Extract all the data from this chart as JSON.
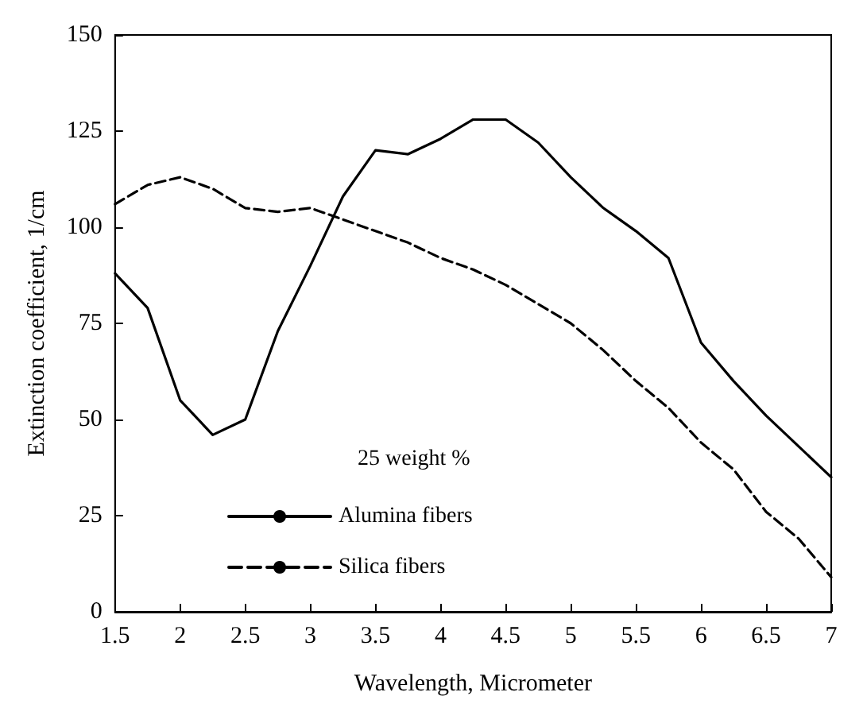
{
  "chart_data": {
    "type": "line",
    "xlabel": "Wavelength, Micrometer",
    "ylabel": "Extinction coefficient, 1/cm",
    "legend_title": "25 weight %",
    "legend": "bottom left",
    "grid": false,
    "marker": "none",
    "x": [
      1.5,
      1.75,
      2.0,
      2.25,
      2.5,
      2.75,
      3.0,
      3.25,
      3.5,
      3.75,
      4.0,
      4.25,
      4.5,
      4.75,
      5.0,
      5.25,
      5.5,
      5.75,
      6.0,
      6.25,
      6.5,
      6.75,
      7.0
    ],
    "series": [
      {
        "name": "Alumina fibers",
        "color": "#000000",
        "line_style": "solid",
        "values": [
          88,
          79,
          55,
          46,
          50,
          73,
          90,
          108,
          120,
          119,
          123,
          128,
          128,
          122,
          113,
          105,
          99,
          92,
          70,
          60,
          51,
          43,
          35
        ]
      },
      {
        "name": "Silica fibers",
        "color": "#000000",
        "line_style": "dashed",
        "values": [
          106,
          111,
          113,
          110,
          105,
          104,
          105,
          102,
          99,
          96,
          92,
          89,
          85,
          80,
          75,
          68,
          60,
          53,
          44,
          37,
          26,
          19,
          9
        ]
      }
    ],
    "xlim": [
      1.5,
      7.0
    ],
    "xticks": [
      1.5,
      2.0,
      2.5,
      3.0,
      3.5,
      4.0,
      4.5,
      5.0,
      5.5,
      6.0,
      6.5,
      7.0
    ],
    "ylim": [
      0,
      150
    ],
    "yticks": [
      0,
      25,
      50,
      75,
      100,
      125,
      150
    ]
  }
}
